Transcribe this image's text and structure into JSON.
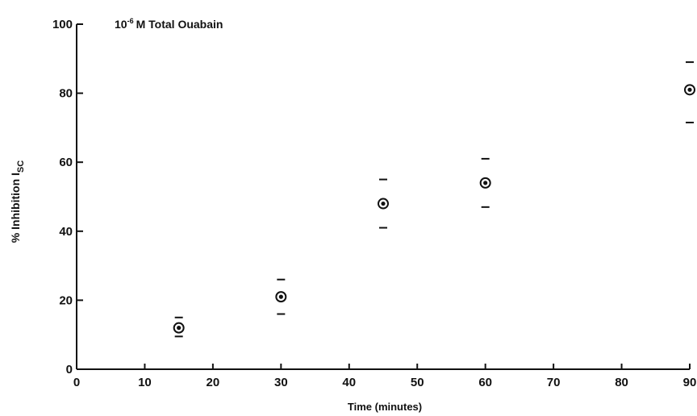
{
  "chart_data": {
    "type": "scatter",
    "annotation_prefix": "10",
    "annotation_exponent": "-6",
    "annotation_suffix": "M  Total Ouabain",
    "xlabel": "Time (minutes)",
    "ylabel_prefix": "% Inhibition  I",
    "ylabel_subscript": "SC",
    "xlim": [
      0,
      90
    ],
    "ylim": [
      0,
      100
    ],
    "x_ticks": [
      "0",
      "10",
      "20",
      "30",
      "40",
      "50",
      "60",
      "70",
      "80",
      "90"
    ],
    "y_ticks": [
      "0",
      "20",
      "40",
      "60",
      "80",
      "100"
    ],
    "grid": false,
    "points": [
      {
        "x": 15,
        "y": 12,
        "upper": 15,
        "lower": 9.5
      },
      {
        "x": 30,
        "y": 21,
        "upper": 26,
        "lower": 16
      },
      {
        "x": 45,
        "y": 48,
        "upper": 55,
        "lower": 41
      },
      {
        "x": 60,
        "y": 54,
        "upper": 61,
        "lower": 47
      },
      {
        "x": 90,
        "y": 81,
        "upper": 89,
        "lower": 71.5
      }
    ],
    "colors": {
      "ink": "#111111",
      "background": "#ffffff"
    }
  }
}
